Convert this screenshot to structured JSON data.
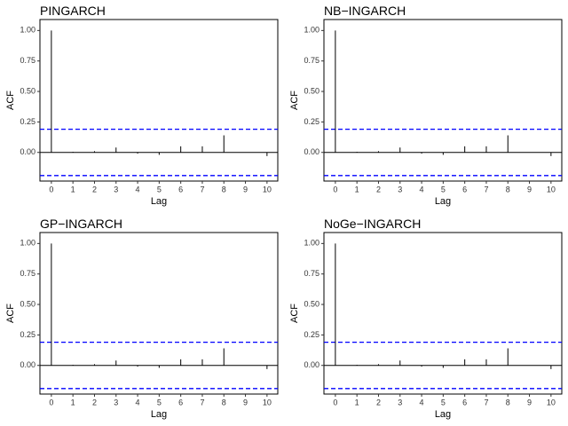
{
  "chart_data": [
    {
      "type": "bar",
      "title": "PINGARCH",
      "x_label": "Lag",
      "y_label": "ACF",
      "x": [
        0,
        1,
        2,
        3,
        4,
        5,
        6,
        7,
        8,
        9,
        10
      ],
      "values": [
        1.0,
        0.005,
        0.01,
        0.04,
        -0.01,
        -0.02,
        0.05,
        0.05,
        0.14,
        0.0,
        -0.03
      ],
      "color": "#000000",
      "confidence_bounds": [
        0.19,
        -0.19
      ],
      "confidence_color": "#0000ff",
      "xlim": [
        -0.53,
        10.5
      ],
      "ylim": [
        -0.235,
        1.09
      ],
      "xticks": [
        0,
        1,
        2,
        3,
        4,
        5,
        6,
        7,
        8,
        9,
        10
      ],
      "yticks": [
        {
          "value": 0,
          "label": "0.00"
        },
        0.25,
        {
          "value": 0.5,
          "label": "0.50"
        },
        0.75,
        {
          "value": 1,
          "label": "1.00"
        }
      ]
    },
    {
      "type": "bar",
      "title": "NB−INGARCH",
      "x_label": "Lag",
      "y_label": "ACF",
      "x": [
        0,
        1,
        2,
        3,
        4,
        5,
        6,
        7,
        8,
        9,
        10
      ],
      "values": [
        1.0,
        0.005,
        0.01,
        0.04,
        -0.01,
        -0.02,
        0.05,
        0.05,
        0.14,
        0.0,
        -0.03
      ],
      "color": "#000000",
      "confidence_bounds": [
        0.19,
        -0.19
      ],
      "confidence_color": "#0000ff",
      "xlim": [
        -0.53,
        10.5
      ],
      "ylim": [
        -0.235,
        1.09
      ],
      "xticks": [
        0,
        1,
        2,
        3,
        4,
        5,
        6,
        7,
        8,
        9,
        10
      ],
      "yticks": [
        {
          "value": 0,
          "label": "0.00"
        },
        0.25,
        {
          "value": 0.5,
          "label": "0.50"
        },
        0.75,
        {
          "value": 1,
          "label": "1.00"
        }
      ]
    },
    {
      "type": "bar",
      "title": "GP−INGARCH",
      "x_label": "Lag",
      "y_label": "ACF",
      "x": [
        0,
        1,
        2,
        3,
        4,
        5,
        6,
        7,
        8,
        9,
        10
      ],
      "values": [
        1.0,
        0.005,
        0.01,
        0.04,
        -0.01,
        -0.02,
        0.05,
        0.05,
        0.14,
        0.0,
        -0.03
      ],
      "color": "#000000",
      "confidence_bounds": [
        0.19,
        -0.19
      ],
      "confidence_color": "#0000ff",
      "xlim": [
        -0.53,
        10.5
      ],
      "ylim": [
        -0.235,
        1.09
      ],
      "xticks": [
        0,
        1,
        2,
        3,
        4,
        5,
        6,
        7,
        8,
        9,
        10
      ],
      "yticks": [
        {
          "value": 0,
          "label": "0.00"
        },
        0.25,
        {
          "value": 0.5,
          "label": "0.50"
        },
        0.75,
        {
          "value": 1,
          "label": "1.00"
        }
      ]
    },
    {
      "type": "bar",
      "title": "NoGe−INGARCH",
      "x_label": "Lag",
      "y_label": "ACF",
      "x": [
        0,
        1,
        2,
        3,
        4,
        5,
        6,
        7,
        8,
        9,
        10
      ],
      "values": [
        1.0,
        0.005,
        0.01,
        0.04,
        -0.01,
        -0.02,
        0.05,
        0.05,
        0.14,
        0.0,
        -0.03
      ],
      "color": "#000000",
      "confidence_bounds": [
        0.19,
        -0.19
      ],
      "confidence_color": "#0000ff",
      "xlim": [
        -0.53,
        10.5
      ],
      "ylim": [
        -0.235,
        1.09
      ],
      "xticks": [
        0,
        1,
        2,
        3,
        4,
        5,
        6,
        7,
        8,
        9,
        10
      ],
      "yticks": [
        {
          "value": 0,
          "label": "0.00"
        },
        0.25,
        {
          "value": 0.5,
          "label": "0.50"
        },
        0.75,
        {
          "value": 1,
          "label": "1.00"
        }
      ]
    }
  ]
}
